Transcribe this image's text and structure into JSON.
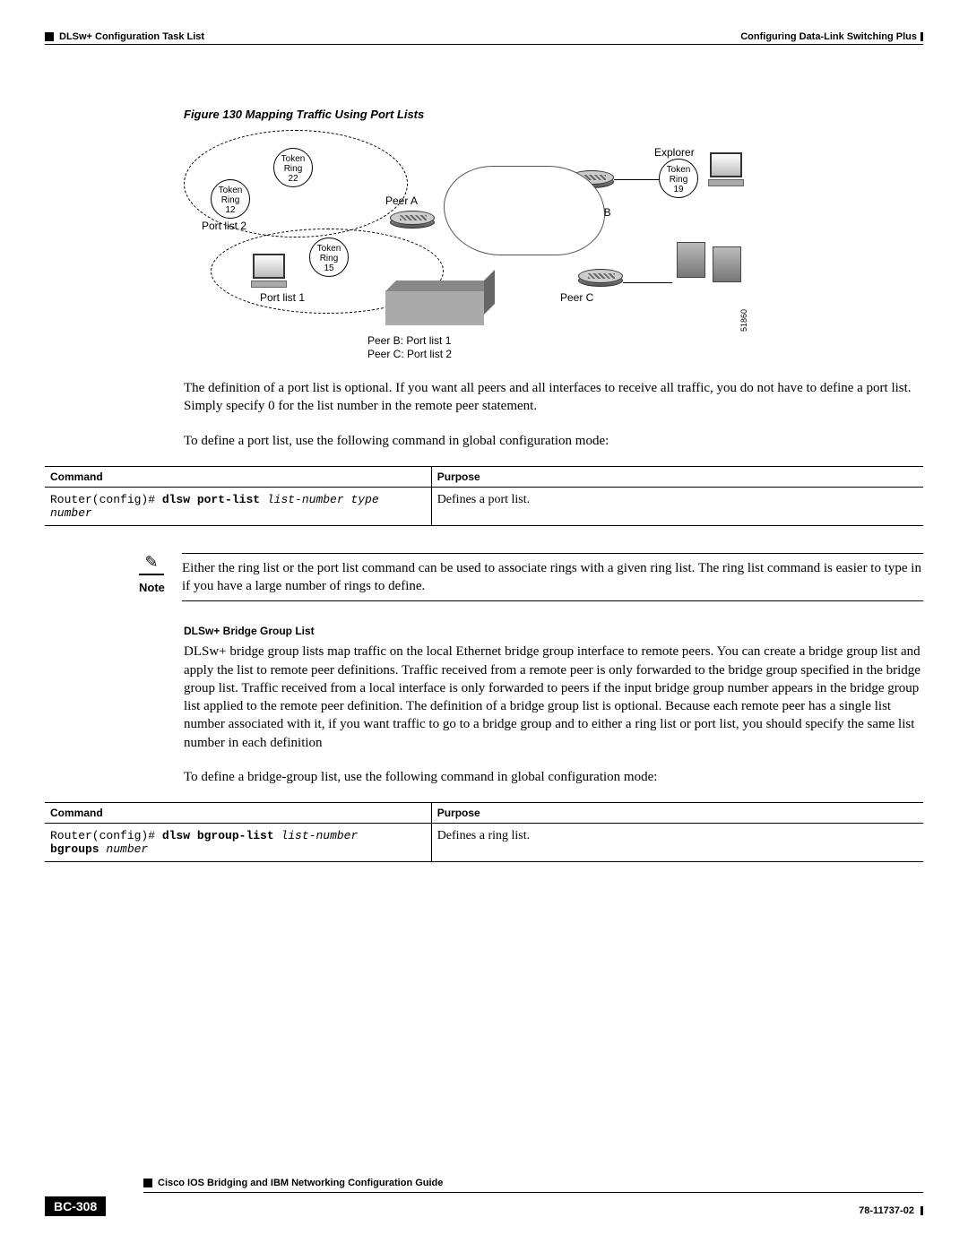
{
  "header": {
    "left": "DLSw+ Configuration Task List",
    "right": "Configuring Data-Link Switching Plus"
  },
  "figure": {
    "caption": "Figure 130    Mapping Traffic Using Port Lists",
    "labels": {
      "tr22": "Token\nRing\n22",
      "tr12": "Token\nRing\n12",
      "tr15": "Token\nRing\n15",
      "tr19": "Token\nRing\n19",
      "portlist2": "Port list 2",
      "portlist1": "Port list 1",
      "peerA": "Peer A",
      "peerB": "Peer B",
      "peerC": "Peer C",
      "explorer": "Explorer",
      "sub1": "Peer B: Port list 1",
      "sub2": "Peer C: Port list 2",
      "diagnum": "51860"
    }
  },
  "para1": "The definition of a port list is optional. If you want all peers and all interfaces to receive all traffic, you do not have to define a port list. Simply specify 0 for the list number in the remote peer statement.",
  "para2": "To define a port list, use the following command in global configuration mode:",
  "table1": {
    "h1": "Command",
    "h2": "Purpose",
    "cmd_prefix": "Router(config)# ",
    "cmd_bold": "dlsw port-list",
    "cmd_ital1": " list-number type number",
    "purpose": "Defines a port list."
  },
  "note": {
    "label": "Note",
    "text": "Either the ring list or the port list command can be used to associate rings with a given ring list. The ring list command is easier to type in if you have a large number of rings to define."
  },
  "section2": {
    "head": "DLSw+ Bridge Group List",
    "para1": "DLSw+ bridge group lists map traffic on the local Ethernet bridge group interface to remote peers. You can create a bridge group list and apply the list to remote peer definitions. Traffic received from a remote peer is only forwarded to the bridge group specified in the bridge group list. Traffic received from a local interface is only forwarded to peers if the input bridge group number appears in the bridge group list applied to the remote peer definition. The definition of a bridge group list is optional. Because each remote peer has a single list number associated with it, if you want traffic to go to a bridge group and to either a ring list or port list, you should specify the same list number in each definition",
    "para2": "To define a bridge-group list, use the following command in global configuration mode:"
  },
  "table2": {
    "h1": "Command",
    "h2": "Purpose",
    "cmd_prefix": "Router(config)# ",
    "cmd_bold1": "dlsw bgroup-list",
    "cmd_ital1": " list-number",
    "cmd_bold2": " bgroups",
    "cmd_ital2": " number",
    "purpose": "Defines a ring list."
  },
  "footer": {
    "title": "Cisco IOS Bridging and IBM Networking Configuration Guide",
    "page": "BC-308",
    "docnum": "78-11737-02"
  }
}
